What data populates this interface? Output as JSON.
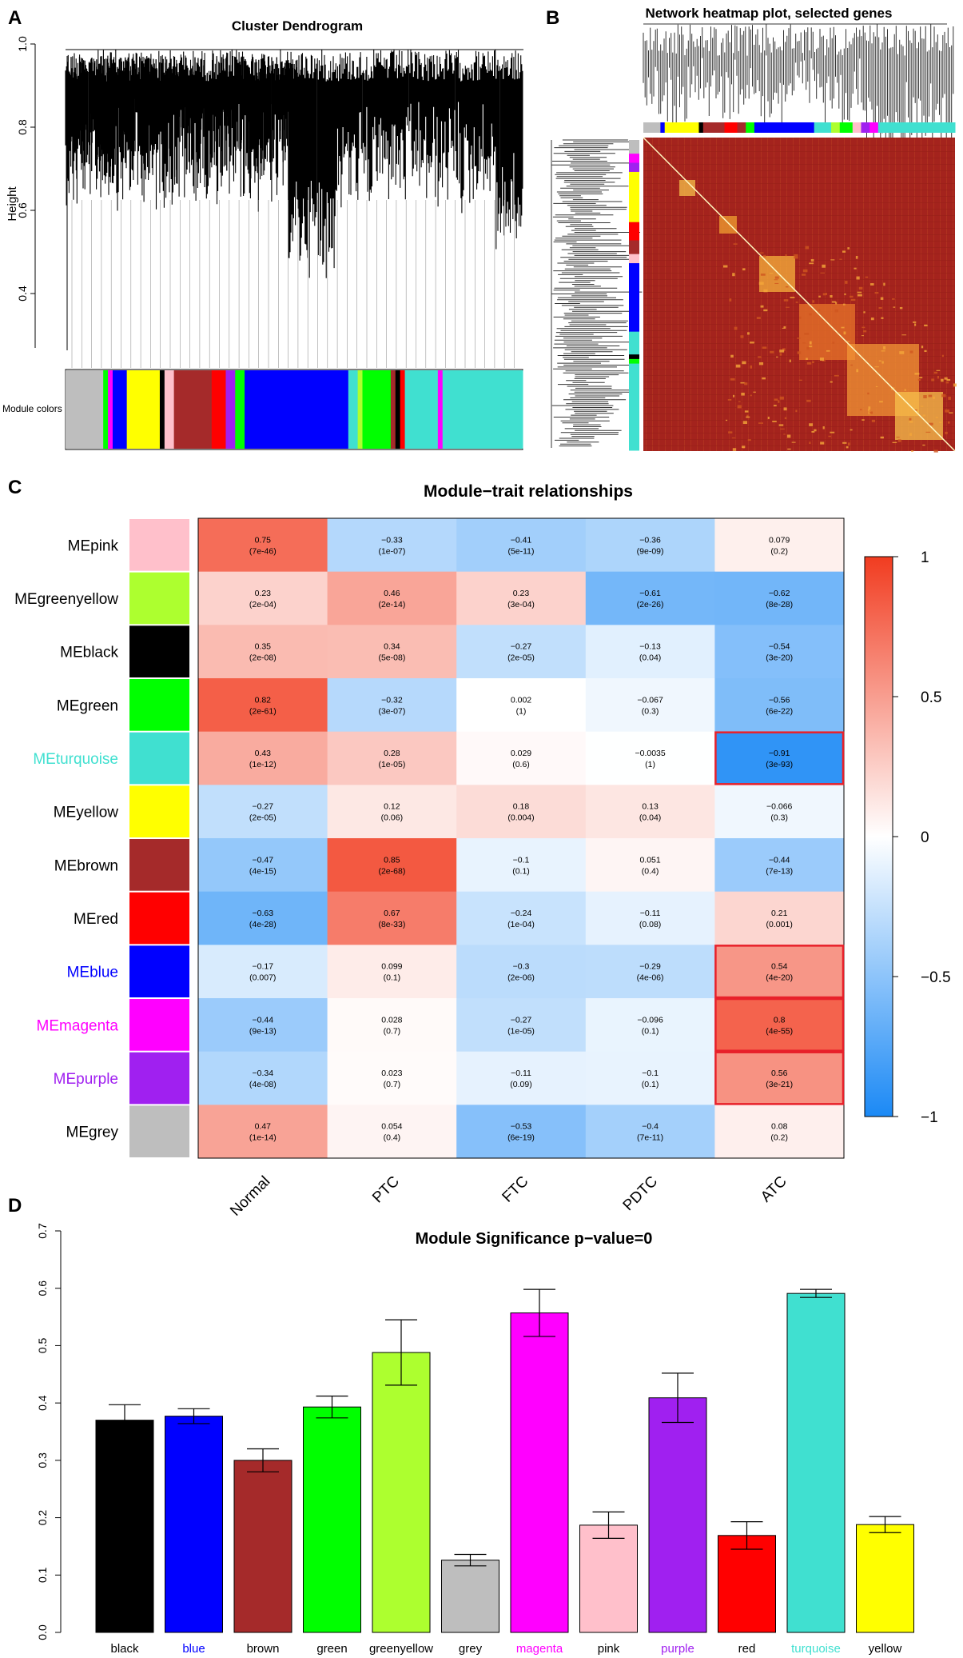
{
  "panels": {
    "a": {
      "letter": "A",
      "title": "Cluster Dendrogram",
      "ylabel": "Height",
      "yticks": [
        "0.4",
        "0.6",
        "0.8",
        "1.0"
      ],
      "module_colors_label": "Module colors",
      "color_bar": [
        "#bebebe",
        "#bebebe",
        "#00ff00",
        "#ff00ff",
        "#0000ff",
        "#ffff00",
        "#ffff00",
        "#000000",
        "#ffc0cb",
        "#a52a2a",
        "#a52a2a",
        "#ff0000",
        "#a020f0",
        "#00ff00",
        "#0000ff",
        "#0000ff",
        "#0000ff",
        "#0000ff",
        "#40e0d0",
        "#adff2f",
        "#00ff00",
        "#00ff00",
        "#a52a2a",
        "#000000",
        "#ff0000",
        "#40e0d0",
        "#40e0d0",
        "#ff00ff",
        "#40e0d0",
        "#40e0d0",
        "#40e0d0"
      ]
    },
    "b": {
      "letter": "B",
      "title": "Network heatmap plot, selected genes",
      "top_color_bar": [
        "#bebebe",
        "#0000ff",
        "#ffff00",
        "#ffff00",
        "#000000",
        "#a52a2a",
        "#ff0000",
        "#a52a2a",
        "#00ff00",
        "#0000ff",
        "#0000ff",
        "#0000ff",
        "#40e0d0",
        "#adff2f",
        "#00ff00",
        "#ffc0cb",
        "#a020f0",
        "#ff00ff",
        "#40e0d0",
        "#40e0d0"
      ],
      "side_color_bar": [
        "#bebebe",
        "#ff00ff",
        "#a020f0",
        "#ffff00",
        "#ffff00",
        "#ff0000",
        "#a52a2a",
        "#ffc0cb",
        "#0000ff",
        "#0000ff",
        "#0000ff",
        "#40e0d0",
        "#000000",
        "#00ff00",
        "#40e0d0",
        "#40e0d0",
        "#40e0d0"
      ]
    },
    "c": {
      "letter": "C"
    },
    "d": {
      "letter": "D"
    }
  },
  "chart_data": [
    {
      "type": "heatmap",
      "title": "Module−trait relationships",
      "columns": [
        "Normal",
        "PTC",
        "FTC",
        "PDTC",
        "ATC"
      ],
      "rows": [
        {
          "name": "MEpink",
          "swatch": "#ffc0cb",
          "label_color": "#000000",
          "values": [
            0.75,
            -0.33,
            -0.41,
            -0.36,
            0.079
          ],
          "pvalues": [
            "(7e-46)",
            "(1e-07)",
            "(5e-11)",
            "(9e-09)",
            "(0.2)"
          ]
        },
        {
          "name": "MEgreenyellow",
          "swatch": "#adff2f",
          "label_color": "#000000",
          "values": [
            0.23,
            0.46,
            0.23,
            -0.61,
            -0.62
          ],
          "pvalues": [
            "(2e-04)",
            "(2e-14)",
            "(3e-04)",
            "(2e-26)",
            "(8e-28)"
          ]
        },
        {
          "name": "MEblack",
          "swatch": "#000000",
          "label_color": "#000000",
          "values": [
            0.35,
            0.34,
            -0.27,
            -0.13,
            -0.54
          ],
          "pvalues": [
            "(2e-08)",
            "(5e-08)",
            "(2e-05)",
            "(0.04)",
            "(3e-20)"
          ]
        },
        {
          "name": "MEgreen",
          "swatch": "#00ff00",
          "label_color": "#000000",
          "values": [
            0.82,
            -0.32,
            0.002,
            -0.067,
            -0.56
          ],
          "pvalues": [
            "(2e-61)",
            "(3e-07)",
            "(1)",
            "(0.3)",
            "(6e-22)"
          ]
        },
        {
          "name": "MEturquoise",
          "swatch": "#40e0d0",
          "label_color": "#40e0d0",
          "values": [
            0.43,
            0.28,
            0.029,
            -0.0035,
            -0.91
          ],
          "pvalues": [
            "(1e-12)",
            "(1e-05)",
            "(0.6)",
            "(1)",
            "(3e-93)"
          ]
        },
        {
          "name": "MEyellow",
          "swatch": "#ffff00",
          "label_color": "#000000",
          "values": [
            -0.27,
            0.12,
            0.18,
            0.13,
            -0.066
          ],
          "pvalues": [
            "(2e-05)",
            "(0.06)",
            "(0.004)",
            "(0.04)",
            "(0.3)"
          ]
        },
        {
          "name": "MEbrown",
          "swatch": "#a52a2a",
          "label_color": "#000000",
          "values": [
            -0.47,
            0.85,
            -0.1,
            0.051,
            -0.44
          ],
          "pvalues": [
            "(4e-15)",
            "(2e-68)",
            "(0.1)",
            "(0.4)",
            "(7e-13)"
          ]
        },
        {
          "name": "MEred",
          "swatch": "#ff0000",
          "label_color": "#000000",
          "values": [
            -0.63,
            0.67,
            -0.24,
            -0.11,
            0.21
          ],
          "pvalues": [
            "(4e-28)",
            "(8e-33)",
            "(1e-04)",
            "(0.08)",
            "(0.001)"
          ]
        },
        {
          "name": "MEblue",
          "swatch": "#0000ff",
          "label_color": "#0000ff",
          "values": [
            -0.17,
            0.099,
            -0.3,
            -0.29,
            0.54
          ],
          "pvalues": [
            "(0.007)",
            "(0.1)",
            "(2e-06)",
            "(4e-06)",
            "(4e-20)"
          ]
        },
        {
          "name": "MEmagenta",
          "swatch": "#ff00ff",
          "label_color": "#ff00ff",
          "values": [
            -0.44,
            0.028,
            -0.27,
            -0.096,
            0.8
          ],
          "pvalues": [
            "(9e-13)",
            "(0.7)",
            "(1e-05)",
            "(0.1)",
            "(4e-55)"
          ]
        },
        {
          "name": "MEpurple",
          "swatch": "#a020f0",
          "label_color": "#a020f0",
          "values": [
            -0.34,
            0.023,
            -0.11,
            -0.1,
            0.56
          ],
          "pvalues": [
            "(4e-08)",
            "(0.7)",
            "(0.09)",
            "(0.1)",
            "(3e-21)"
          ]
        },
        {
          "name": "MEgrey",
          "swatch": "#bebebe",
          "label_color": "#000000",
          "values": [
            0.47,
            0.054,
            -0.53,
            -0.4,
            0.08
          ],
          "pvalues": [
            "(1e-14)",
            "(0.4)",
            "(6e-19)",
            "(7e-11)",
            "(0.2)"
          ]
        }
      ],
      "highlighted": [
        [
          "MEturquoise",
          "ATC"
        ],
        [
          "MEblue",
          "ATC"
        ],
        [
          "MEmagenta",
          "ATC"
        ],
        [
          "MEpurple",
          "ATC"
        ]
      ],
      "highlight_color": "#e8202a",
      "legend_ticks": [
        "1",
        "0.5",
        "0",
        "−0.5",
        "−1"
      ],
      "legend_range": [
        -1,
        1
      ]
    },
    {
      "type": "bar",
      "title": "Module Significance p−value=0",
      "categories": [
        "black",
        "blue",
        "brown",
        "green",
        "greenyellow",
        "grey",
        "magenta",
        "pink",
        "purple",
        "red",
        "turquoise",
        "yellow"
      ],
      "values": [
        0.37,
        0.377,
        0.3,
        0.393,
        0.488,
        0.126,
        0.557,
        0.187,
        0.409,
        0.169,
        0.591,
        0.188
      ],
      "errors": [
        0.027,
        0.013,
        0.02,
        0.019,
        0.057,
        0.01,
        0.041,
        0.023,
        0.043,
        0.024,
        0.007,
        0.014
      ],
      "bar_colors": [
        "#000000",
        "#0000ff",
        "#a52a2a",
        "#00ff00",
        "#adff2f",
        "#bebebe",
        "#ff00ff",
        "#ffc0cb",
        "#a020f0",
        "#ff0000",
        "#40e0d0",
        "#ffff00"
      ],
      "label_colors": [
        "#000000",
        "#0000ff",
        "#000000",
        "#000000",
        "#000000",
        "#000000",
        "#ff00ff",
        "#000000",
        "#a020f0",
        "#000000",
        "#40e0d0",
        "#000000"
      ],
      "ylim": [
        0,
        0.7
      ],
      "yticks": [
        "0.0",
        "0.1",
        "0.2",
        "0.3",
        "0.4",
        "0.5",
        "0.6",
        "0.7"
      ]
    }
  ]
}
